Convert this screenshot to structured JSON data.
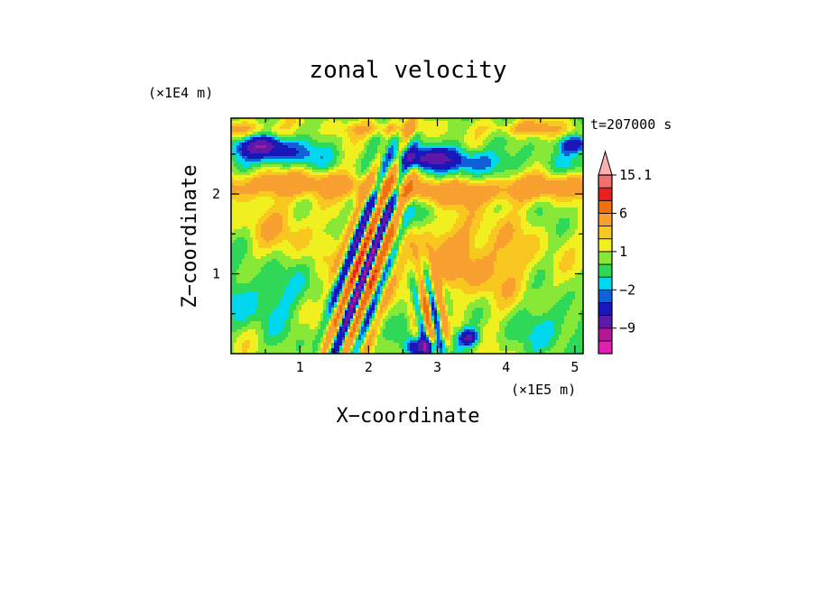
{
  "chart_data": {
    "type": "heatmap",
    "title": "zonal velocity",
    "xlabel": "X−coordinate",
    "ylabel": "Z−coordinate",
    "x_scale_label": "(×1E5 m)",
    "y_scale_label": "(×1E4 m)",
    "time_label": "t=207000 s",
    "xlim": [
      0,
      5.12
    ],
    "ylim": [
      0,
      2.95
    ],
    "x_ticks": [
      1,
      2,
      3,
      4,
      5
    ],
    "x_tick_labels": [
      "1",
      "2",
      "3",
      "4",
      "5"
    ],
    "y_ticks": [
      1,
      2
    ],
    "y_tick_labels": [
      "1",
      "2"
    ],
    "colorbar": {
      "levels": [
        -15.1,
        -12,
        -9,
        -6,
        -3,
        -2,
        -1,
        0,
        1,
        2,
        3,
        6,
        9,
        12,
        15.1
      ],
      "labels": [
        "15.1",
        "6",
        "1",
        "−2",
        "−9"
      ],
      "label_values": [
        15.1,
        6,
        1,
        -2,
        -9
      ],
      "colors": [
        "#e020b0",
        "#b01898",
        "#6018a8",
        "#1818b8",
        "#1060d8",
        "#00d8f0",
        "#30d858",
        "#88e838",
        "#f0f020",
        "#f8c820",
        "#f8a030",
        "#f07010",
        "#e82020",
        "#f07070",
        "#f8b0b0"
      ],
      "extend": "max"
    }
  }
}
